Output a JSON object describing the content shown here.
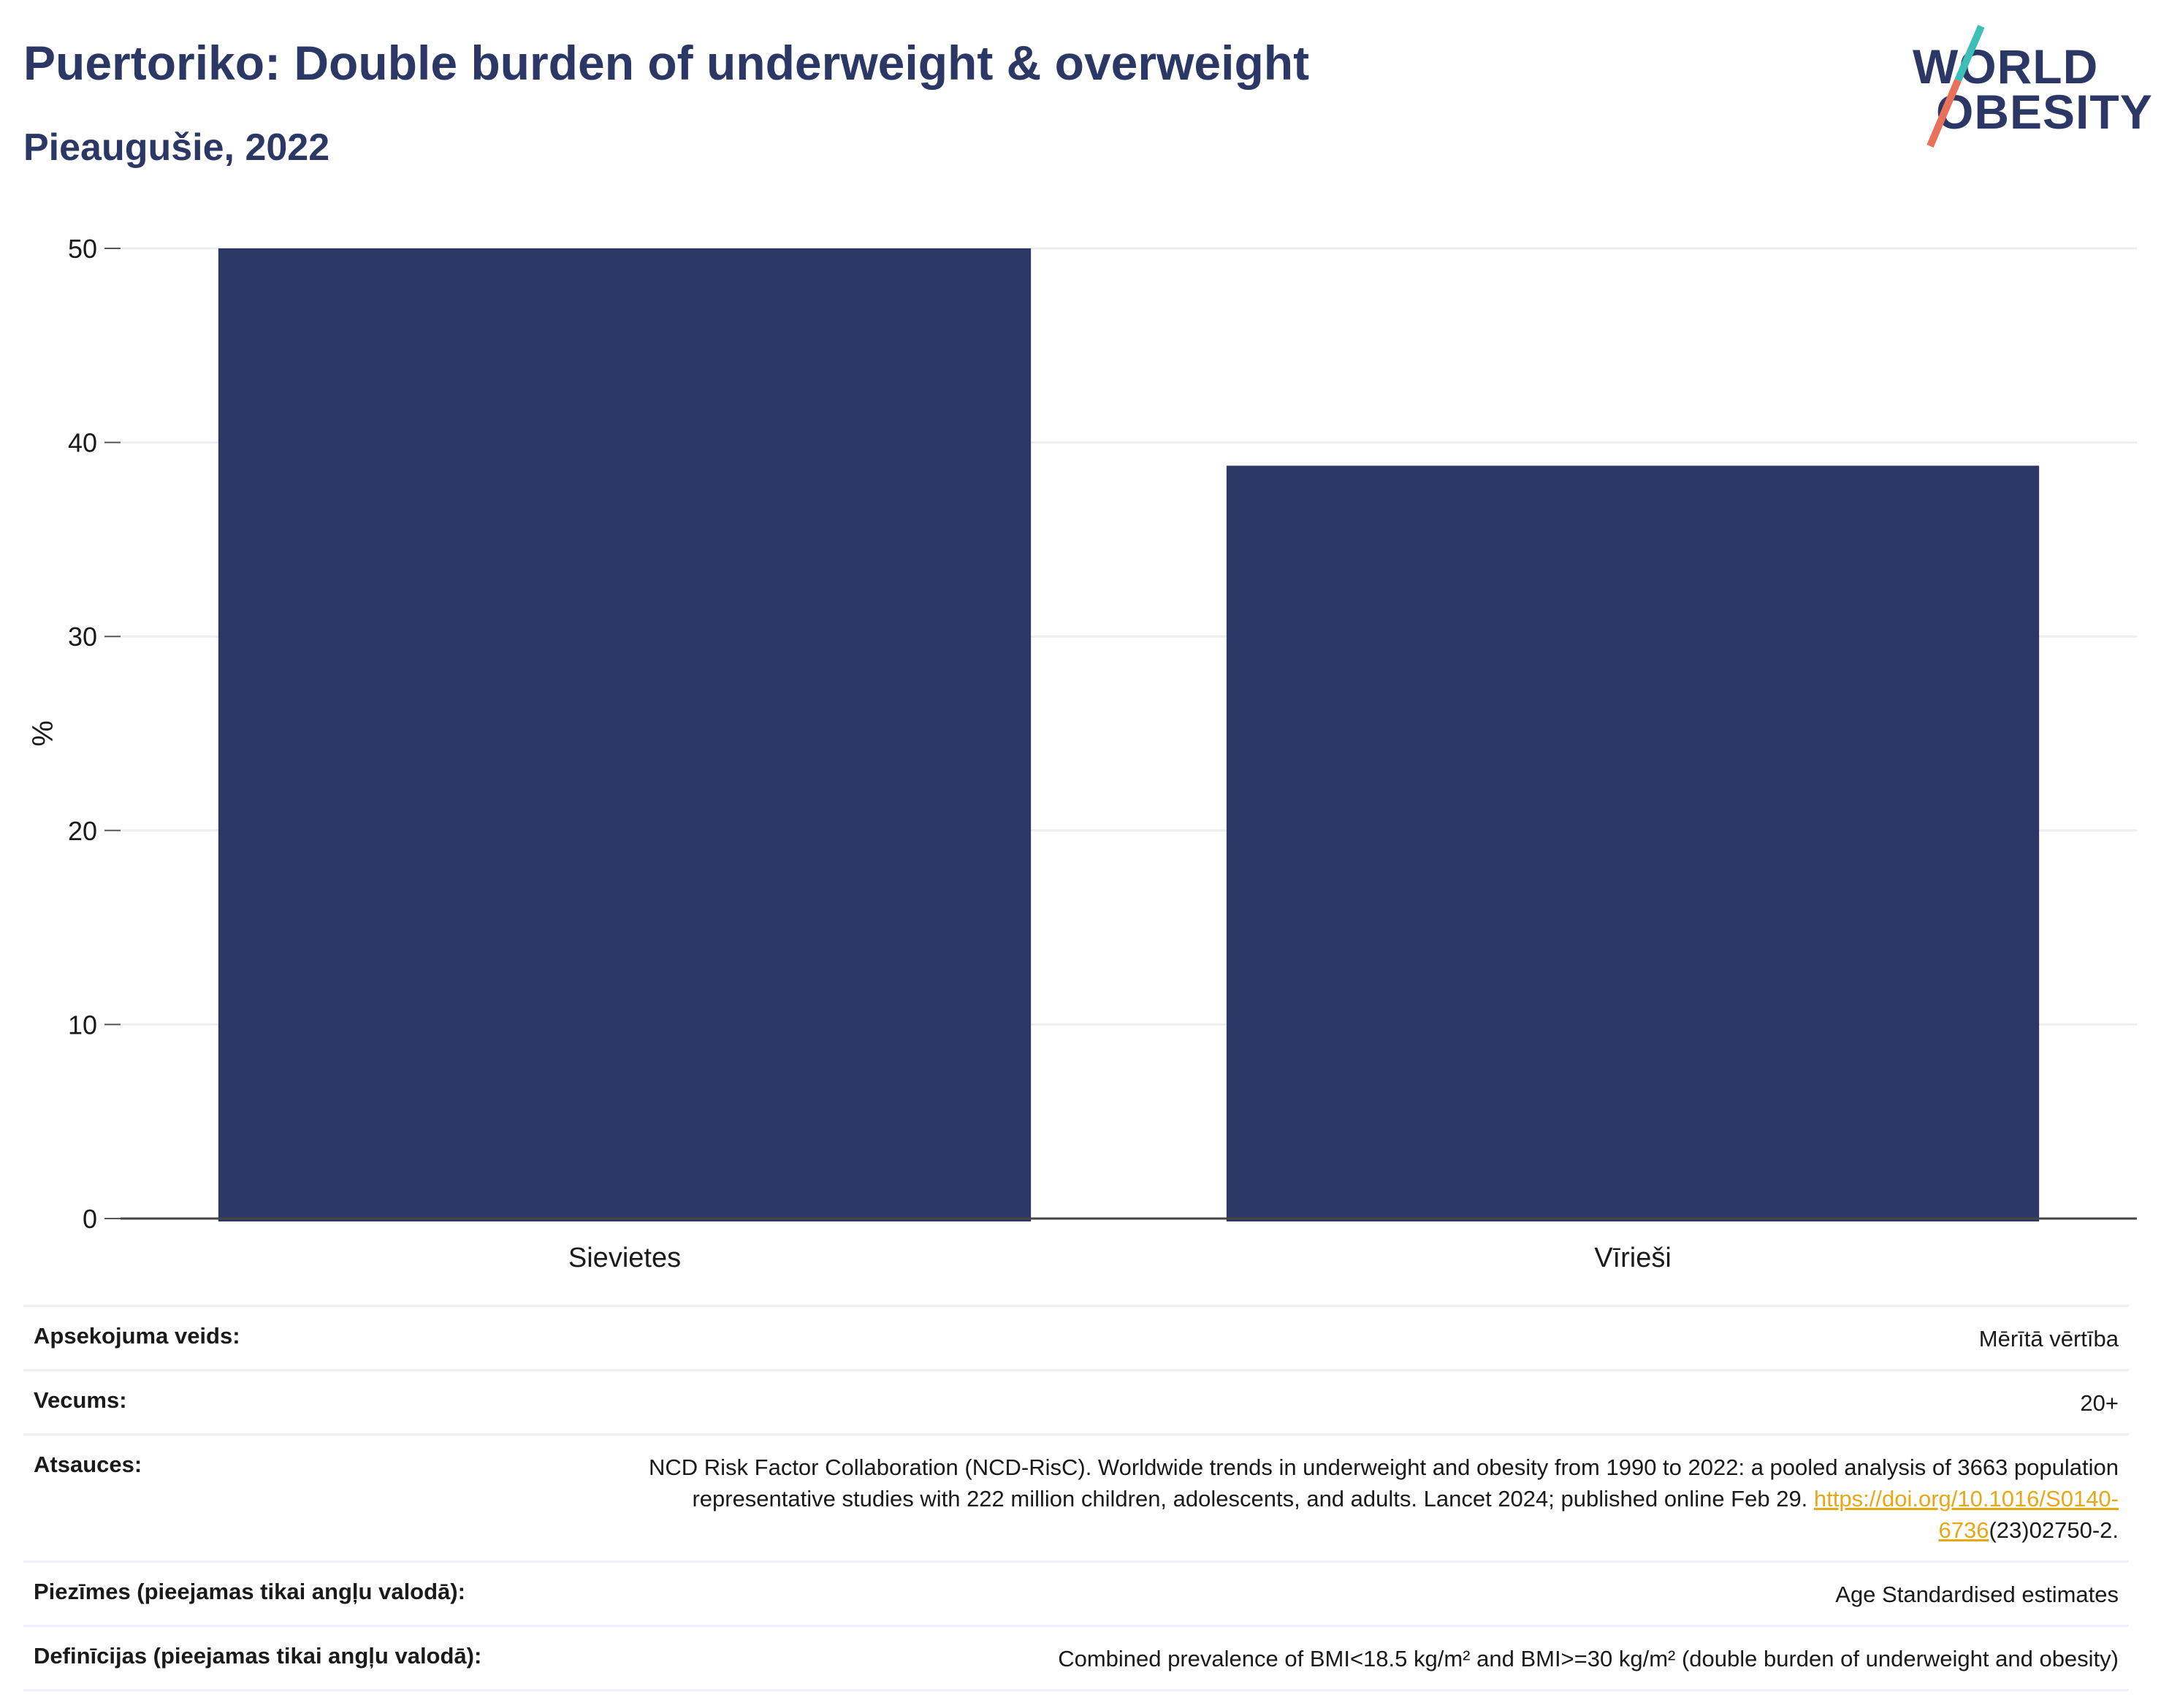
{
  "header": {
    "title": "Puertoriko: Double burden of underweight & overweight",
    "subtitle": "Pieaugušie, 2022"
  },
  "logo": {
    "line1": "WORLD",
    "line2": "OBESITY",
    "colors": {
      "text": "#2b3764",
      "slash_top": "#3cbfb6",
      "slash_bottom": "#e8715a"
    }
  },
  "chart_data": {
    "type": "bar",
    "categories": [
      "Sievietes",
      "Vīrieši"
    ],
    "values": [
      50.1,
      38.8
    ],
    "ylabel": "%",
    "ylim": [
      0,
      50
    ],
    "yticks": [
      0,
      10,
      20,
      30,
      40,
      50
    ],
    "grid": true,
    "bar_color": "#2b3764"
  },
  "info": {
    "rows": [
      {
        "key": "Apsekojuma veids:",
        "value": "Mērītā vērtība"
      },
      {
        "key": "Vecums:",
        "value": "20+"
      },
      {
        "key": "Atsauces:",
        "value": "NCD Risk Factor Collaboration (NCD-RisC). Worldwide trends in underweight and obesity from 1990 to 2022: a pooled analysis of 3663 population representative studies with 222 million children, adolescents, and adults. Lancet 2024; published online Feb 29.",
        "link": "https://doi.org/10.1016/S0140-6736",
        "link_suffix": "(23)02750-2."
      },
      {
        "key": "Piezīmes (pieejamas tikai angļu valodā):",
        "value": "Age Standardised estimates"
      },
      {
        "key": "Definīcijas (pieejamas tikai angļu valodā):",
        "value": "Combined prevalence of BMI<18.5 kg/m² and BMI>=30 kg/m² (double burden of underweight and obesity)"
      }
    ]
  }
}
